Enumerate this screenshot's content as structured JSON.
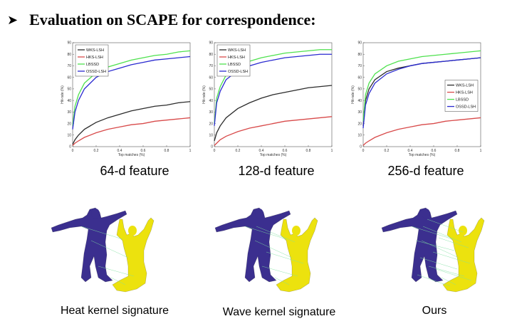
{
  "title": "Evaluation on SCAPE for correspondence:",
  "bullet_icon": "arrowhead-bullet-icon",
  "colors": {
    "WKS-LSH": "#2b2b2b",
    "HKS-LSH": "#d84a4a",
    "LBSSD": "#4ee14e",
    "OSSD-LSH": "#2a2ad0",
    "model_source": "#3b2f8f",
    "model_target": "#ece20e",
    "correspondence": "#7fe0a0"
  },
  "chart_data": [
    {
      "type": "line",
      "caption": "64-d feature",
      "xlabel": "Top matches (%)",
      "ylabel": "Hit-rate (%)",
      "xlim": [
        0,
        1
      ],
      "ylim": [
        0,
        90
      ],
      "xticks": [
        0,
        0.2,
        0.4,
        0.6,
        0.8,
        1
      ],
      "xtick_labels": [
        "0",
        "0.2",
        "0.4",
        "0.6",
        "0.8",
        "1"
      ],
      "yticks": [
        0,
        10,
        20,
        30,
        40,
        50,
        60,
        70,
        80,
        90
      ],
      "legend_position": "top-left",
      "x": [
        0,
        0.02,
        0.05,
        0.1,
        0.2,
        0.3,
        0.4,
        0.5,
        0.6,
        0.7,
        0.8,
        0.9,
        1.0
      ],
      "series": [
        {
          "name": "WKS-LSH",
          "values": [
            2,
            6,
            10,
            15,
            21,
            25,
            28,
            31,
            33,
            35,
            36,
            38,
            39
          ]
        },
        {
          "name": "HKS-LSH",
          "values": [
            1,
            3,
            5,
            8,
            12,
            15,
            17,
            19,
            20,
            22,
            23,
            24,
            25
          ]
        },
        {
          "name": "LBSSD",
          "values": [
            18,
            35,
            45,
            55,
            64,
            69,
            72,
            75,
            77,
            79,
            80,
            82,
            83
          ]
        },
        {
          "name": "OSSD-LSH",
          "values": [
            15,
            30,
            40,
            50,
            60,
            65,
            68,
            71,
            73,
            75,
            76,
            77,
            78
          ]
        }
      ]
    },
    {
      "type": "line",
      "caption": "128-d feature",
      "xlabel": "Top matches (%)",
      "ylabel": "Hit-rate (%)",
      "xlim": [
        0,
        1
      ],
      "ylim": [
        0,
        90
      ],
      "xticks": [
        0,
        0.2,
        0.4,
        0.6,
        0.8,
        1
      ],
      "xtick_labels": [
        "0",
        "0.2",
        "0.4",
        "0.6",
        "0.8",
        "1"
      ],
      "yticks": [
        0,
        10,
        20,
        30,
        40,
        50,
        60,
        70,
        80,
        90
      ],
      "legend_position": "top-left",
      "x": [
        0,
        0.02,
        0.05,
        0.1,
        0.2,
        0.3,
        0.4,
        0.5,
        0.6,
        0.7,
        0.8,
        0.9,
        1.0
      ],
      "series": [
        {
          "name": "WKS-LSH",
          "values": [
            5,
            12,
            18,
            25,
            33,
            38,
            42,
            45,
            47,
            49,
            51,
            52,
            53
          ]
        },
        {
          "name": "HKS-LSH",
          "values": [
            1,
            3,
            6,
            9,
            13,
            16,
            18,
            20,
            22,
            23,
            24,
            25,
            26
          ]
        },
        {
          "name": "LBSSD",
          "values": [
            20,
            42,
            52,
            62,
            70,
            74,
            77,
            79,
            81,
            82,
            83,
            84,
            84
          ]
        },
        {
          "name": "OSSD-LSH",
          "values": [
            18,
            38,
            48,
            58,
            66,
            70,
            73,
            75,
            77,
            78,
            79,
            80,
            80
          ]
        }
      ]
    },
    {
      "type": "line",
      "caption": "256-d feature",
      "xlabel": "Top matches (%)",
      "ylabel": "Hit-rate (%)",
      "xlim": [
        0,
        1
      ],
      "ylim": [
        0,
        90
      ],
      "xticks": [
        0,
        0.2,
        0.4,
        0.6,
        0.8,
        1
      ],
      "xtick_labels": [
        "0",
        "0.2",
        "0.4",
        "0.6",
        "0.8",
        "1"
      ],
      "yticks": [
        0,
        10,
        20,
        30,
        40,
        50,
        60,
        70,
        80,
        90
      ],
      "legend_position": "center-right",
      "x": [
        0,
        0.02,
        0.05,
        0.1,
        0.2,
        0.3,
        0.4,
        0.5,
        0.6,
        0.7,
        0.8,
        0.9,
        1.0
      ],
      "series": [
        {
          "name": "WKS-LSH",
          "values": [
            18,
            40,
            50,
            58,
            65,
            68,
            70,
            72,
            73,
            74,
            75,
            76,
            77
          ]
        },
        {
          "name": "HKS-LSH",
          "values": [
            1,
            3,
            5,
            8,
            12,
            15,
            17,
            19,
            20,
            22,
            23,
            24,
            25
          ]
        },
        {
          "name": "LBSSD",
          "values": [
            22,
            45,
            55,
            63,
            70,
            74,
            76,
            78,
            79,
            80,
            81,
            82,
            83
          ]
        },
        {
          "name": "OSSD-LSH",
          "values": [
            16,
            36,
            46,
            55,
            63,
            67,
            70,
            72,
            73,
            74,
            75,
            76,
            77
          ]
        }
      ]
    }
  ],
  "comparisons": [
    {
      "label": "Heat kernel signature",
      "match_density": 2
    },
    {
      "label": "Wave kernel signature",
      "match_density": 3
    },
    {
      "label": "Ours",
      "match_density": 6
    }
  ]
}
